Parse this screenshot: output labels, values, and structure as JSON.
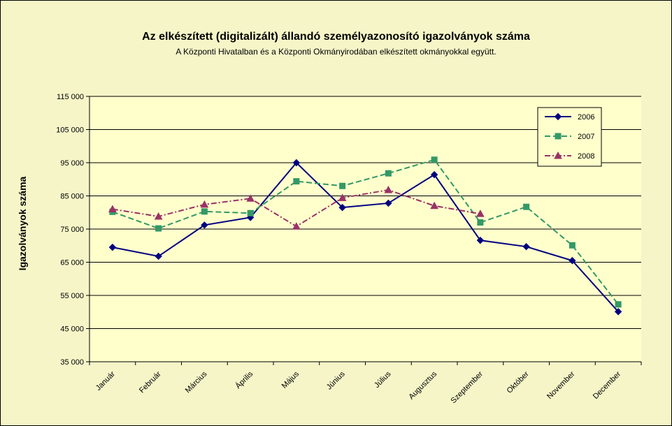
{
  "chart_data": {
    "type": "line",
    "title": "Az elkészített (digitalizált) állandó személyazonosító igazolványok száma",
    "subtitle": "A Központi Hivatalban és a Központi Okmányirodában elkészített okmányokkal együtt.",
    "xlabel": "",
    "ylabel": "Igazolványok száma",
    "ylim": [
      35000,
      115000
    ],
    "yticks": [
      "35 000",
      "45 000",
      "55 000",
      "65 000",
      "75 000",
      "85 000",
      "95 000",
      "105 000",
      "115 000"
    ],
    "ytick_values": [
      35000,
      45000,
      55000,
      65000,
      75000,
      85000,
      95000,
      105000,
      115000
    ],
    "categories": [
      "Január",
      "Február",
      "Március",
      "Április",
      "Május",
      "Június",
      "Július",
      "Augusztus",
      "Szeptember",
      "Október",
      "November",
      "December"
    ],
    "grid": true,
    "legend_position": "top-right",
    "series": [
      {
        "name": "2006",
        "color": "#000080",
        "marker": "diamond",
        "dash": "solid",
        "values": [
          69500,
          66800,
          76200,
          78500,
          95000,
          81500,
          82800,
          91400,
          71600,
          69700,
          65500,
          50100
        ]
      },
      {
        "name": "2007",
        "color": "#339966",
        "marker": "square",
        "dash": "dash",
        "values": [
          80200,
          75200,
          80300,
          79800,
          89400,
          88000,
          91800,
          95900,
          77000,
          81700,
          70100,
          52300
        ]
      },
      {
        "name": "2008",
        "color": "#993366",
        "marker": "triangle",
        "dash": "dashdot",
        "values": [
          81000,
          78800,
          82400,
          84200,
          75800,
          84400,
          86800,
          82000,
          79600,
          null,
          null,
          null
        ]
      }
    ]
  }
}
